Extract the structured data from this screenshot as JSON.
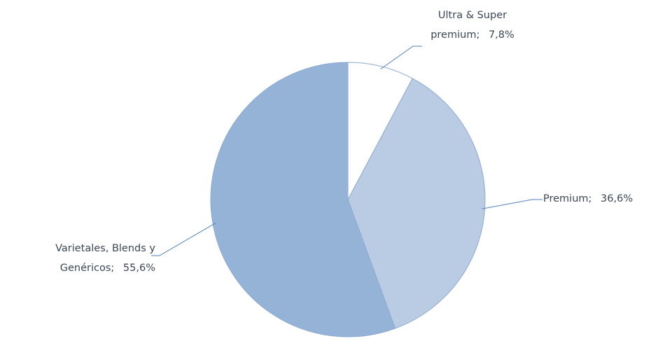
{
  "chart_data": {
    "type": "pie",
    "categories": [
      "Ultra & Super premium",
      "Premium",
      "Varietales, Blends y Genéricos"
    ],
    "values": [
      7.8,
      36.6,
      55.6
    ],
    "value_labels": [
      "7,8%",
      "36,6%",
      "55,6%"
    ],
    "label_separator": ";",
    "colors": [
      "#ffffff",
      "#b9cce4",
      "#95b3d7"
    ]
  }
}
